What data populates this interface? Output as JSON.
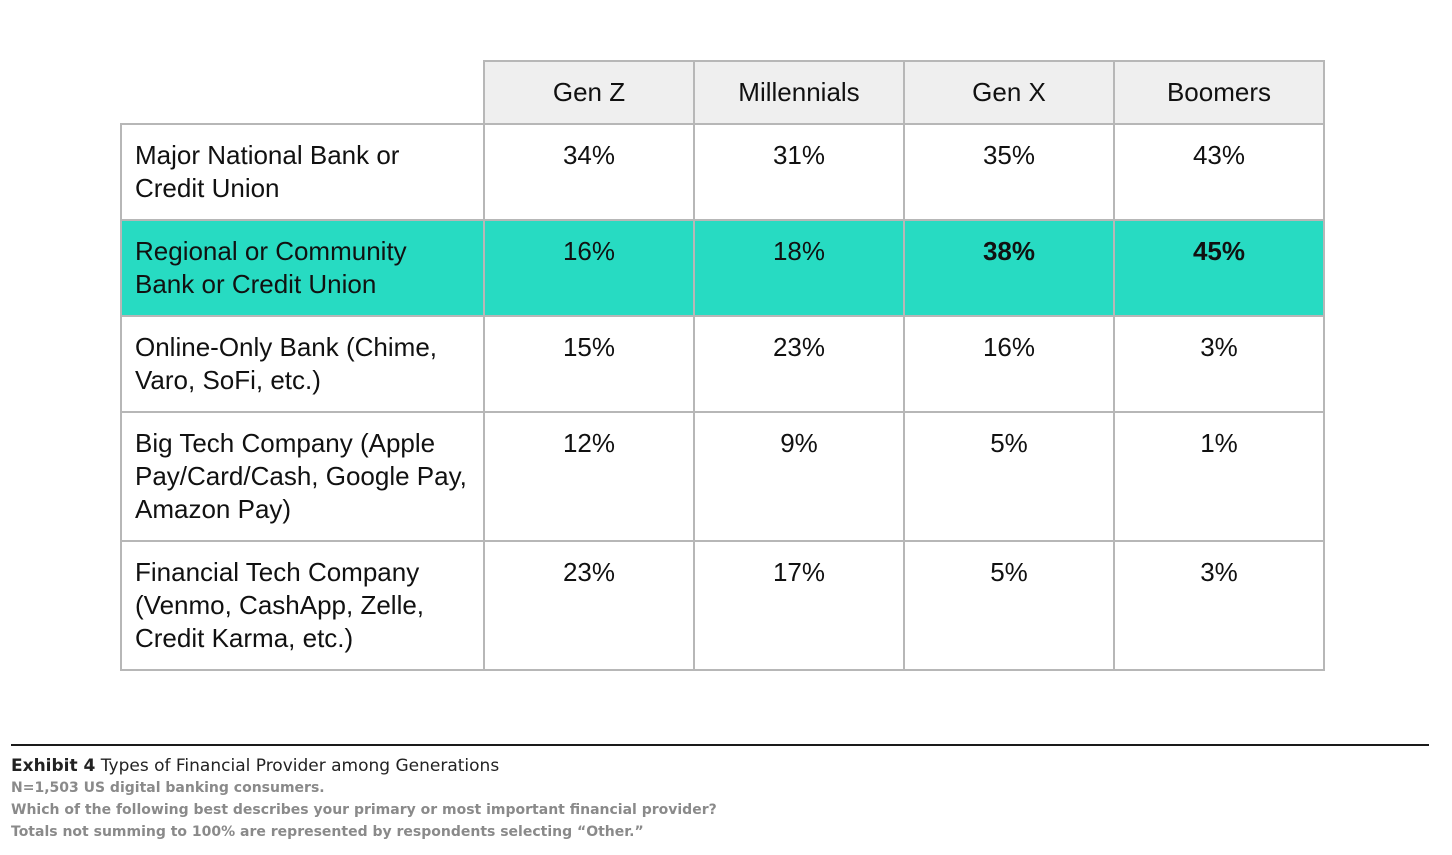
{
  "chart_data": {
    "type": "table",
    "columns": [
      "Gen Z",
      "Millennials",
      "Gen X",
      "Boomers"
    ],
    "rows": [
      {
        "label": "Major National Bank or Credit Union",
        "values": [
          "34%",
          "31%",
          "35%",
          "43%"
        ],
        "highlight": false,
        "bold": [
          false,
          false,
          false,
          false
        ]
      },
      {
        "label": "Regional or Community Bank or Credit Union",
        "values": [
          "16%",
          "18%",
          "38%",
          "45%"
        ],
        "highlight": true,
        "bold": [
          false,
          false,
          true,
          true
        ]
      },
      {
        "label": "Online-Only Bank (Chime, Varo, SoFi, etc.)",
        "values": [
          "15%",
          "23%",
          "16%",
          "3%"
        ],
        "highlight": false,
        "bold": [
          false,
          false,
          false,
          false
        ]
      },
      {
        "label": "Big Tech Company (Apple Pay/Card/Cash, Google Pay, Amazon Pay)",
        "values": [
          "12%",
          "9%",
          "5%",
          "1%"
        ],
        "highlight": false,
        "bold": [
          false,
          false,
          false,
          false
        ]
      },
      {
        "label": "Financial Tech Company (Venmo, CashApp, Zelle, Credit Karma, etc.)",
        "values": [
          "23%",
          "17%",
          "5%",
          "3%"
        ],
        "highlight": false,
        "bold": [
          false,
          false,
          false,
          false
        ]
      }
    ],
    "colors": {
      "highlight": "#27dbc2",
      "header_bg": "#efefef",
      "border": "#b7b7b7"
    }
  },
  "caption": {
    "exhibit": "Exhibit 4",
    "title": "Types of Financial Provider among Generations",
    "notes": [
      "N=1,503 US digital banking consumers.",
      "Which of the following best describes your primary or most important financial provider?",
      "Totals not summing to 100% are represented by respondents selecting “Other.”"
    ]
  }
}
